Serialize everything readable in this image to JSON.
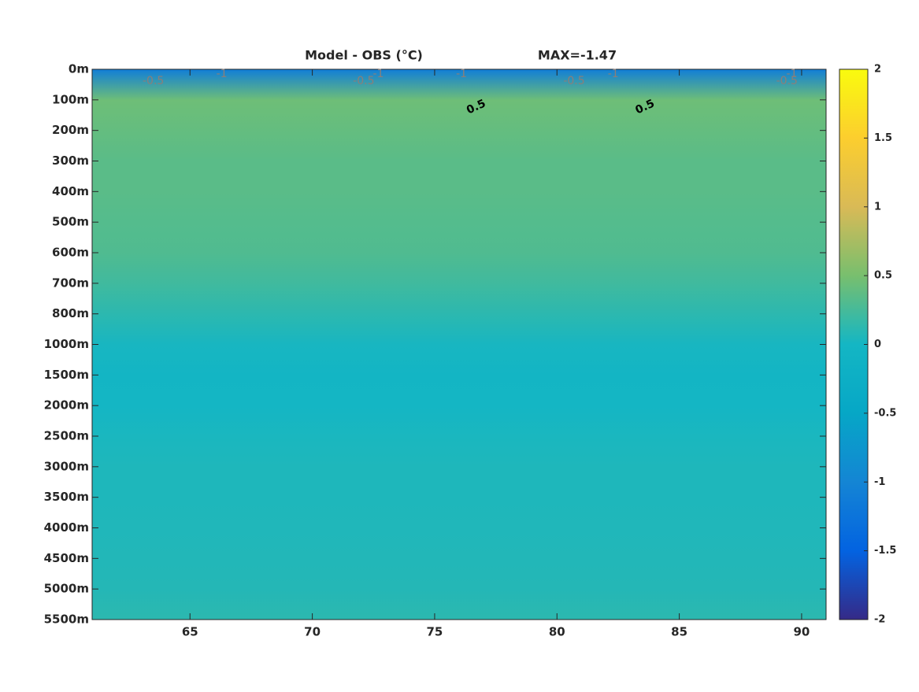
{
  "chart_data": {
    "type": "heatmap",
    "title": "Model - OBS (°C)",
    "annotation": "MAX=-1.47",
    "y_categories": [
      "0m",
      "100m",
      "200m",
      "300m",
      "400m",
      "500m",
      "600m",
      "700m",
      "800m",
      "1000m",
      "1500m",
      "2000m",
      "2500m",
      "3000m",
      "3500m",
      "4000m",
      "4500m",
      "5000m",
      "5500m"
    ],
    "values": [
      -1.1,
      0.45,
      0.4,
      0.35,
      0.35,
      0.32,
      0.3,
      0.22,
      0.12,
      0.02,
      -0.02,
      0,
      0.03,
      0.05,
      0.05,
      0.06,
      0.07,
      0.08,
      0.12
    ],
    "xlim": [
      61,
      91
    ],
    "xticks": [
      65,
      70,
      75,
      80,
      85,
      90
    ],
    "colormap": "parula",
    "clim": [
      -2,
      2
    ],
    "cticks": [
      -2,
      -1.5,
      -1,
      -0.5,
      0,
      0.5,
      1,
      1.5,
      2
    ],
    "contour_labels": [
      {
        "level": -0.5,
        "x": 63.5
      },
      {
        "level": -1,
        "x": 66.3
      },
      {
        "level": -0.5,
        "x": 72.1
      },
      {
        "level": -1,
        "x": 72.7
      },
      {
        "level": -1,
        "x": 76.1
      },
      {
        "level": 0.5,
        "x": 76.7
      },
      {
        "level": -0.5,
        "x": 80.7
      },
      {
        "level": -1,
        "x": 82.3
      },
      {
        "level": 0.5,
        "x": 83.6
      },
      {
        "level": -0.5,
        "x": 89.4
      },
      {
        "level": -1,
        "x": 89.6
      }
    ]
  }
}
